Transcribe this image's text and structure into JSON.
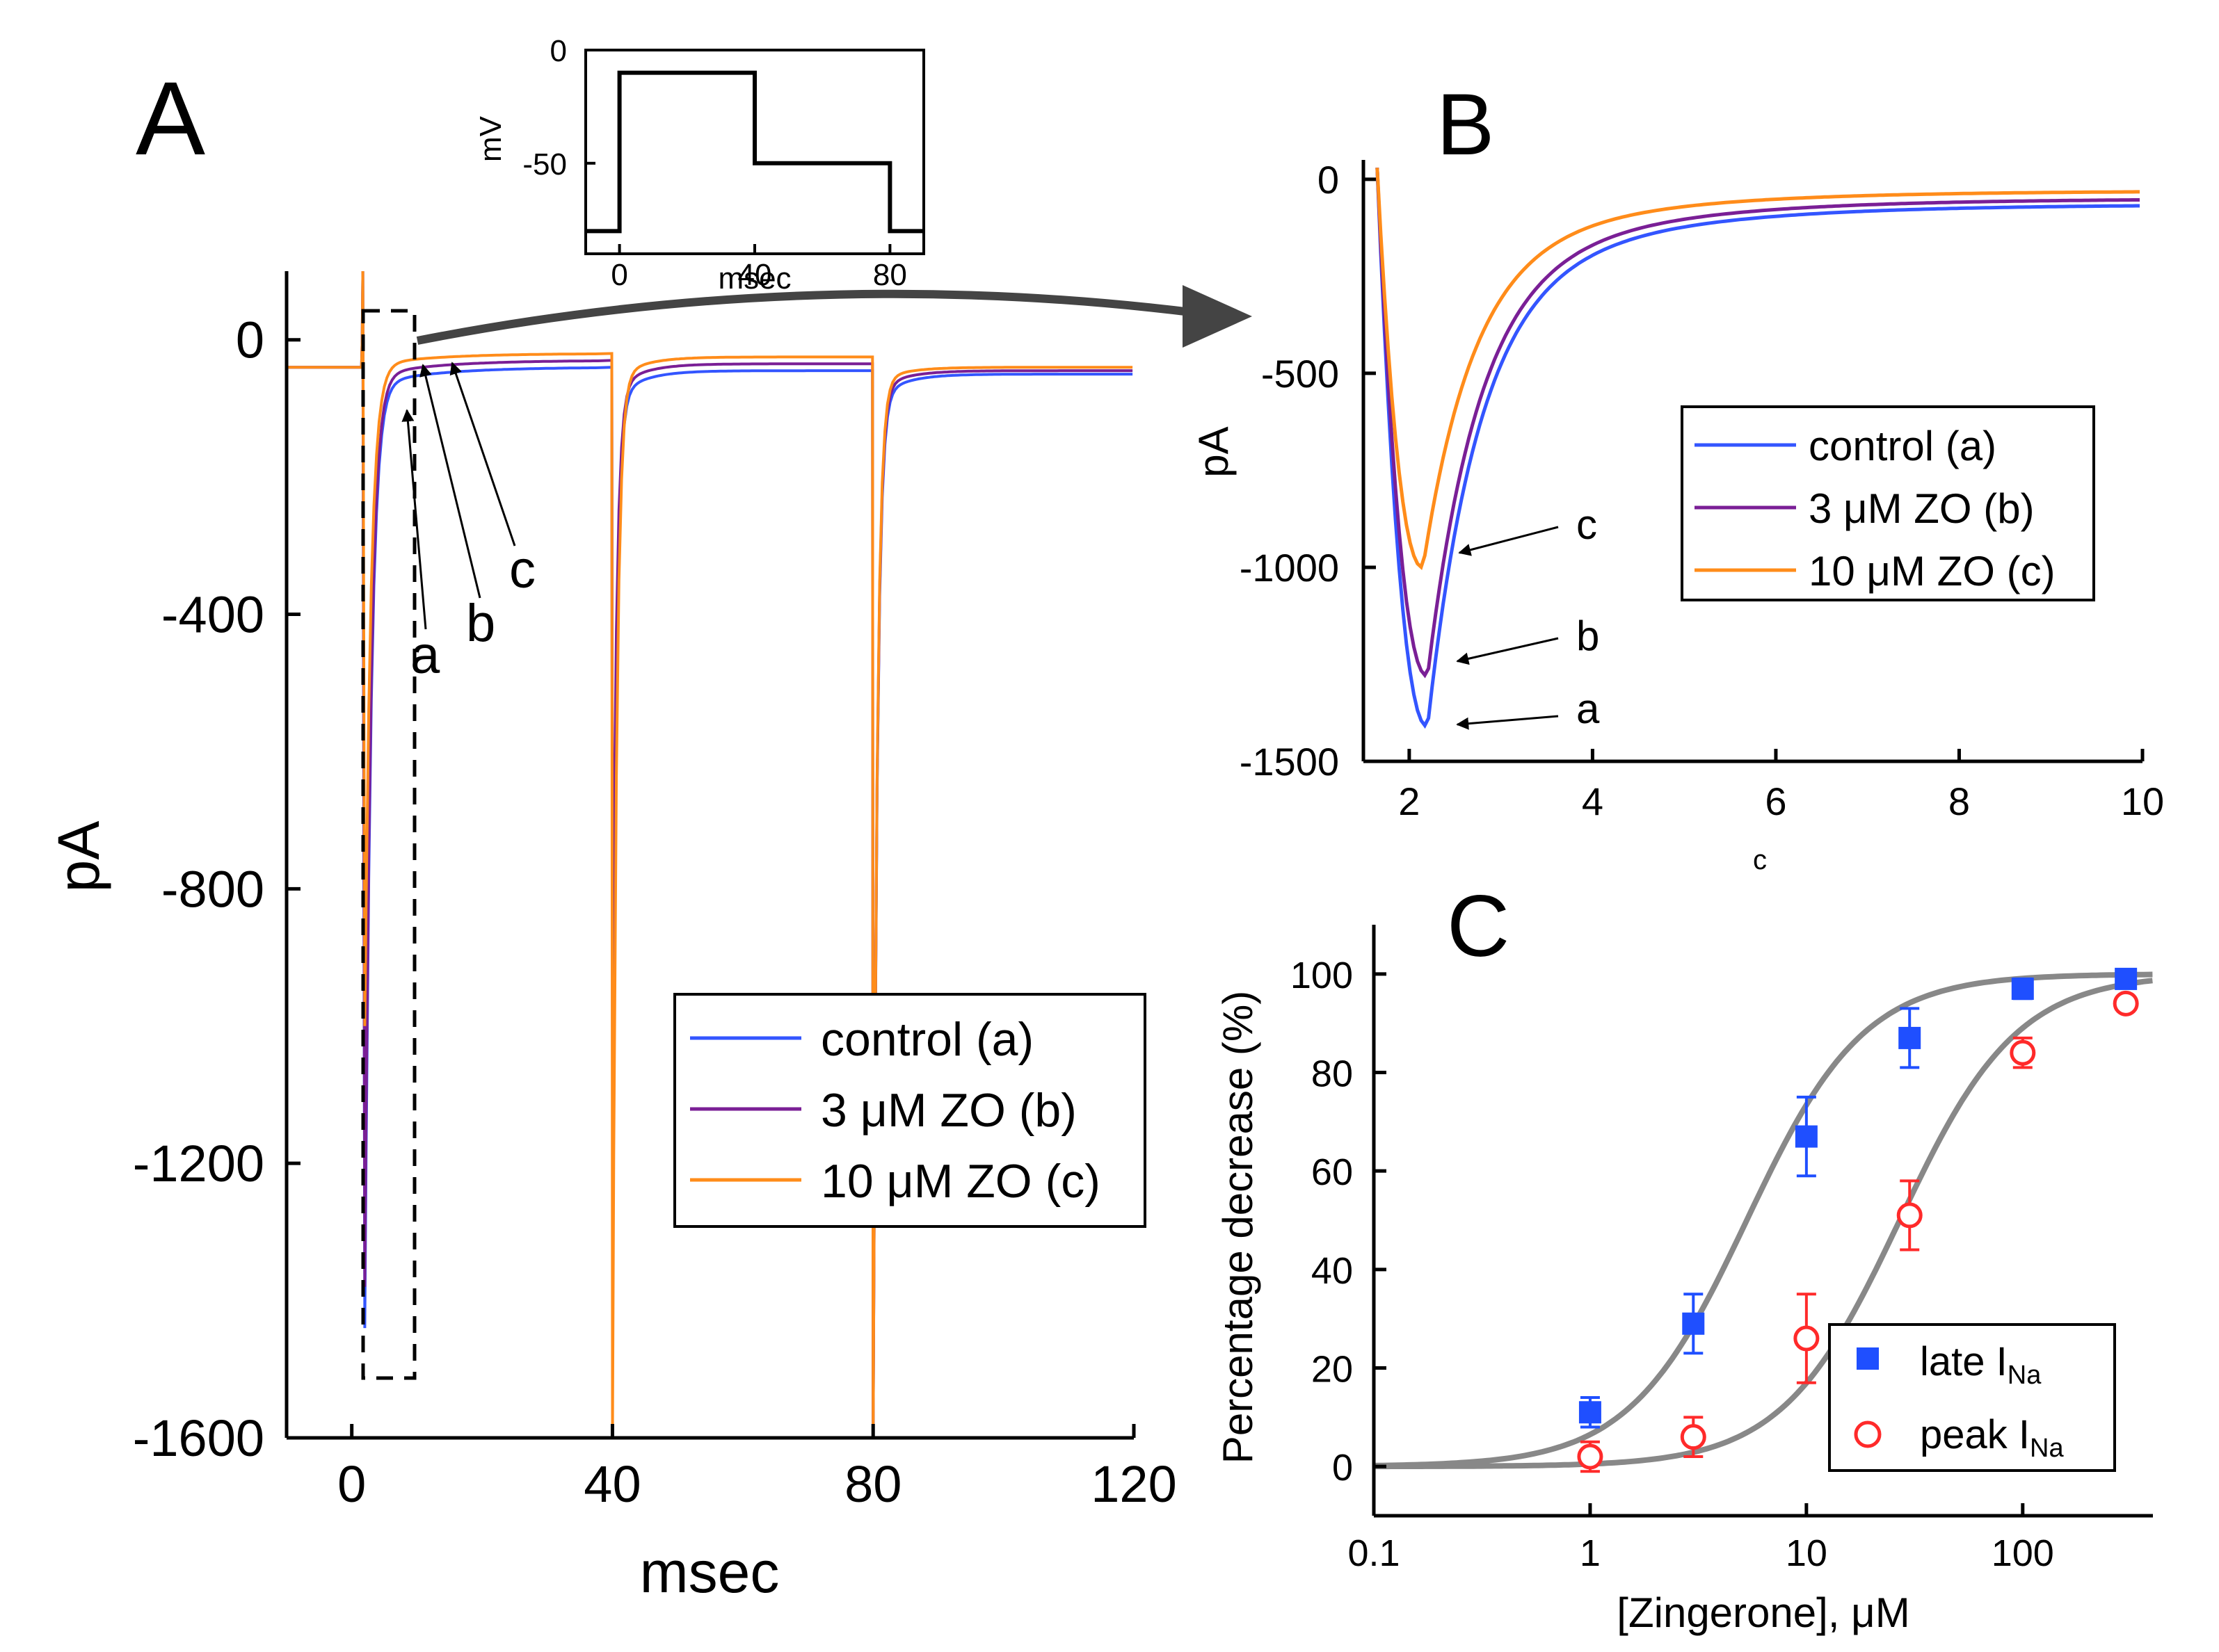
{
  "panel_labels": {
    "a": "A",
    "b": "B",
    "c": "C"
  },
  "colors": {
    "control": "#3355ff",
    "zo3": "#7a1f96",
    "zo10": "#ff8c1a",
    "late": "#1f4fff",
    "peak": "#ff2a2a",
    "fit": "#888888"
  },
  "chart_data": [
    {
      "id": "A",
      "type": "line",
      "title": "",
      "xlabel": "msec",
      "ylabel": "pA",
      "xlim": [
        -10,
        120
      ],
      "ylim": [
        -1600,
        100
      ],
      "xticks": [
        0,
        40,
        80,
        120
      ],
      "yticks": [
        0,
        -400,
        -800,
        -1200,
        -1600
      ],
      "legend": [
        "control (a)",
        "3 μM ZO (b)",
        "10 μM ZO (c)"
      ],
      "annotations": [
        "a",
        "b",
        "c"
      ],
      "series": [
        {
          "name": "control (a)",
          "baseline": -40,
          "peaks": [
            [
              2,
              -1440
            ],
            [
              40,
              -1070
            ],
            [
              80,
              -1600
            ]
          ],
          "late": [
            [
              10,
              -85
            ],
            [
              38,
              -40
            ],
            [
              42,
              -100
            ],
            [
              78,
              -45
            ],
            [
              82,
              -100
            ],
            [
              120,
              -50
            ]
          ]
        },
        {
          "name": "3 μM ZO (b)",
          "baseline": -40,
          "peaks": [
            [
              2,
              -1380
            ],
            [
              40,
              -1000
            ],
            [
              80,
              -1600
            ]
          ],
          "late": [
            [
              10,
              -70
            ],
            [
              38,
              -30
            ],
            [
              42,
              -85
            ],
            [
              78,
              -35
            ],
            [
              82,
              -85
            ],
            [
              120,
              -45
            ]
          ]
        },
        {
          "name": "10 μM ZO (c)",
          "baseline": -40,
          "peaks": [
            [
              2,
              -1000
            ],
            [
              40,
              -1600
            ],
            [
              80,
              -1600
            ]
          ],
          "late": [
            [
              10,
              -50
            ],
            [
              38,
              -20
            ],
            [
              42,
              -70
            ],
            [
              78,
              -25
            ],
            [
              82,
              -70
            ],
            [
              120,
              -40
            ]
          ]
        }
      ]
    },
    {
      "id": "A-inset",
      "type": "line",
      "xlabel": "msec",
      "ylabel": "mV",
      "xlim": [
        -10,
        90
      ],
      "ylim": [
        -90,
        0
      ],
      "xticks": [
        0,
        40,
        80
      ],
      "yticks": [
        0,
        -50
      ],
      "series": [
        {
          "name": "voltage protocol",
          "x": [
            -10,
            0,
            0,
            40,
            40,
            80,
            80,
            90
          ],
          "y": [
            -80,
            -80,
            -10,
            -10,
            -50,
            -50,
            -80,
            -80
          ]
        }
      ]
    },
    {
      "id": "B",
      "type": "line",
      "xlabel": "c",
      "ylabel": "pA",
      "xlim": [
        1.5,
        10
      ],
      "ylim": [
        -1500,
        50
      ],
      "xticks": [
        2,
        4,
        6,
        8,
        10
      ],
      "yticks": [
        0,
        -500,
        -1000,
        -1500
      ],
      "legend": [
        "control (a)",
        "3 μM ZO (b)",
        "10 μM ZO (c)"
      ],
      "annotations": [
        "c",
        "b",
        "a"
      ],
      "series": [
        {
          "name": "control (a)",
          "peak_x": 2.2,
          "peak_y": -1410,
          "end_y": -65
        },
        {
          "name": "3 μM ZO (b)",
          "peak_x": 2.2,
          "peak_y": -1280,
          "end_y": -50
        },
        {
          "name": "10 μM ZO (c)",
          "peak_x": 2.15,
          "peak_y": -1000,
          "end_y": -30
        }
      ]
    },
    {
      "id": "C",
      "type": "scatter",
      "xlabel": "[Zingerone], μM",
      "ylabel": "Percentage decrease (%)",
      "xscale": "log",
      "xlim": [
        0.1,
        400
      ],
      "ylim": [
        -10,
        110
      ],
      "xticks": [
        0.1,
        1,
        10,
        100
      ],
      "xtick_labels": [
        "0.1",
        "1",
        "10",
        "100"
      ],
      "yticks": [
        0,
        20,
        40,
        60,
        80,
        100
      ],
      "legend_main": [
        "late I",
        "peak I"
      ],
      "legend_sub": "Na",
      "series": [
        {
          "name": "late INa",
          "marker": "square",
          "x": [
            1,
            3,
            10,
            30,
            100,
            300
          ],
          "y": [
            11,
            29,
            67,
            87,
            97,
            99
          ],
          "err": [
            3,
            6,
            8,
            6,
            2,
            1
          ],
          "fit": {
            "ic50": 5.3,
            "hill": 1.6
          }
        },
        {
          "name": "peak INa",
          "marker": "circle",
          "x": [
            1,
            3,
            10,
            30,
            100,
            300
          ],
          "y": [
            2,
            6,
            26,
            51,
            84,
            94
          ],
          "err": [
            3,
            4,
            9,
            7,
            3,
            1
          ],
          "fit": {
            "ic50": 27,
            "hill": 1.6
          }
        }
      ]
    }
  ]
}
